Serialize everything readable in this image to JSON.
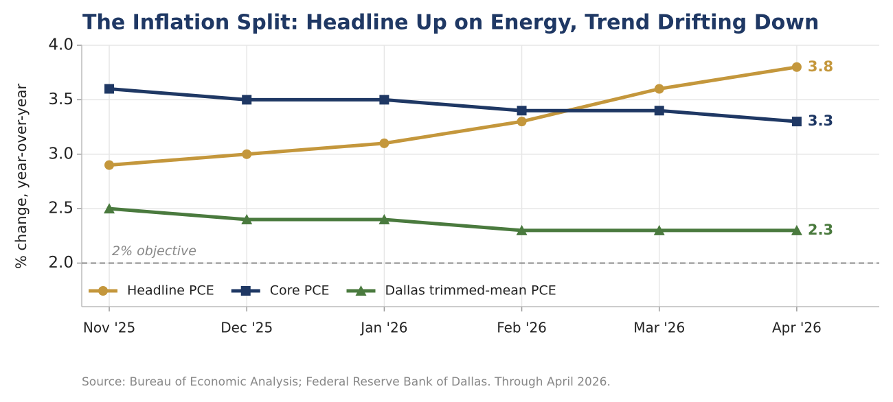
{
  "chart_data": {
    "type": "line",
    "title": "The Inflation Split: Headline Up on Energy, Trend Drifting Down",
    "y_label": "% change, year-over-year",
    "source": "Source: Bureau of Economic Analysis; Federal Reserve Bank of Dallas. Through April 2026.",
    "categories": [
      "Nov '25",
      "Dec '25",
      "Jan '26",
      "Feb '26",
      "Mar '26",
      "Apr '26"
    ],
    "series": [
      {
        "name": "Headline PCE",
        "color": "#c4973c",
        "marker": "circle",
        "values": [
          2.9,
          3.0,
          3.1,
          3.3,
          3.6,
          3.8
        ]
      },
      {
        "name": "Core PCE",
        "color": "#1f3864",
        "marker": "square",
        "values": [
          3.6,
          3.5,
          3.5,
          3.4,
          3.4,
          3.3
        ]
      },
      {
        "name": "Dallas trimmed-mean PCE",
        "color": "#4a7a3e",
        "marker": "triangle",
        "values": [
          2.5,
          2.4,
          2.4,
          2.3,
          2.3,
          2.3
        ]
      }
    ],
    "reference_line": {
      "value": 2,
      "label": "2% objective"
    },
    "ylim": [
      1.6,
      4.0
    ],
    "yticks": [
      {
        "value": 2,
        "label": "2.0"
      },
      2.5,
      {
        "value": 3,
        "label": "3.0"
      },
      3.5,
      {
        "value": 4,
        "label": "4.0"
      }
    ],
    "grid": true,
    "legend": "lower left"
  }
}
